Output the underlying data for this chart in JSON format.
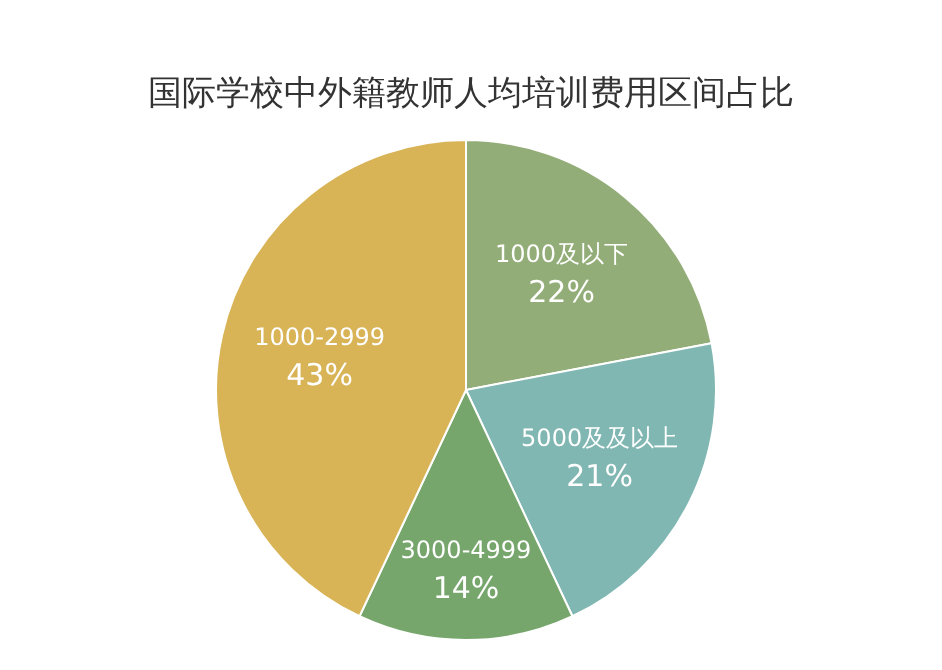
{
  "chart_data": {
    "type": "pie",
    "title": "国际学校中外籍教师人均培训费用区间占比",
    "categories": [
      "1000及以下",
      "5000及及以上",
      "3000-4999",
      "1000-2999"
    ],
    "values": [
      22,
      21,
      14,
      43
    ],
    "value_labels": [
      "22%",
      "21%",
      "14%",
      "43%"
    ],
    "colors": [
      "#93ad78",
      "#80b7b2",
      "#76a66c",
      "#d8b457"
    ]
  }
}
